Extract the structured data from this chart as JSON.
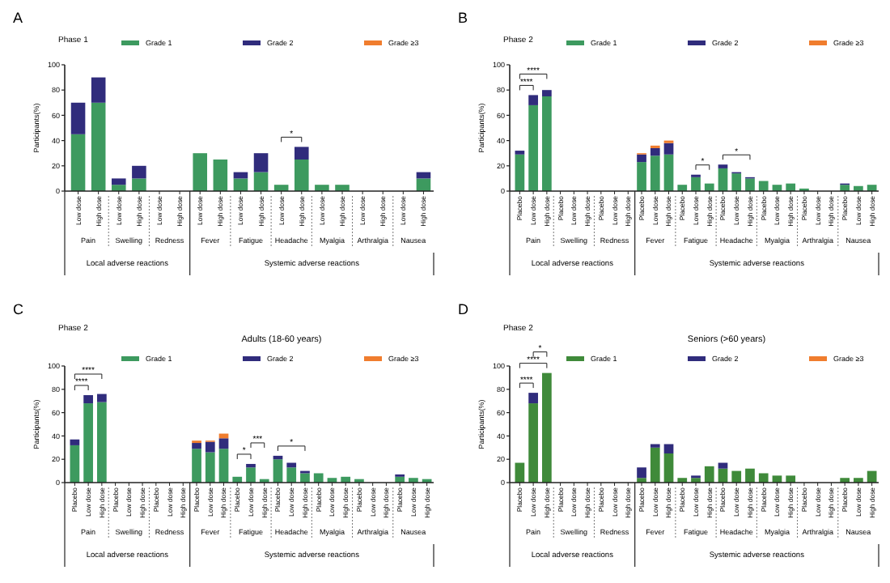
{
  "chart_data": [
    {
      "type": "bar",
      "stacked": true,
      "title": "Phase 1",
      "ylabel": "Participants(%)",
      "ylim": [
        0,
        100
      ],
      "yticks": [
        0,
        20,
        40,
        60,
        80,
        100
      ],
      "legend": "top",
      "categories": [
        "Low dose",
        "High dose",
        "Low dose",
        "High dose",
        "Low dose",
        "High dose",
        "Low dose",
        "High dose",
        "Low dose",
        "High dose",
        "Low dose",
        "High dose",
        "Low dose",
        "High dose",
        "Low dose",
        "High dose",
        "Low dose",
        "High dose"
      ],
      "series": [
        {
          "name": "Grade 1",
          "color": "#3d9a5f",
          "values": [
            45,
            70,
            5,
            10,
            0,
            0,
            30,
            25,
            10,
            15,
            5,
            25,
            5,
            5,
            0,
            0,
            0,
            10
          ]
        },
        {
          "name": "Grade 2",
          "color": "#302c7c",
          "values": [
            25,
            20,
            5,
            10,
            0,
            0,
            0,
            0,
            5,
            15,
            0,
            10,
            0,
            0,
            0,
            0,
            0,
            5
          ]
        },
        {
          "name": "Grade ≥3",
          "color": "#f07d2e",
          "values": [
            0,
            0,
            0,
            0,
            0,
            0,
            0,
            0,
            0,
            0,
            0,
            0,
            0,
            0,
            0,
            0,
            0,
            0
          ]
        }
      ],
      "annotations": [
        "A",
        "Pain",
        "Swelling",
        "Redness",
        "Fever",
        "Fatigue",
        "Headache",
        "Myalgia",
        "Arthralgia",
        "Nausea",
        "Local adverse reactions",
        "Systemic adverse reactions",
        "*"
      ]
    },
    {
      "type": "bar",
      "stacked": true,
      "title": "Phase 2",
      "ylabel": "Participants(%)",
      "ylim": [
        0,
        100
      ],
      "yticks": [
        0,
        20,
        40,
        60,
        80,
        100
      ],
      "legend": "top",
      "categories": [
        "Placebo",
        "Low dose",
        "High dose",
        "Placebo",
        "Low dose",
        "High dose",
        "Placebo",
        "Low dose",
        "High dose",
        "Placebo",
        "Low dose",
        "High dose",
        "Placebo",
        "Low dose",
        "High dose",
        "Placebo",
        "Low dose",
        "High dose",
        "Placebo",
        "Low dose",
        "High dose",
        "Placebo",
        "Low dose",
        "High dose",
        "Placebo",
        "Low dose",
        "High dose"
      ],
      "series": [
        {
          "name": "Grade 1",
          "color": "#3d9a5f",
          "values": [
            29,
            68,
            75,
            0,
            0,
            0,
            0,
            0,
            0,
            23,
            28,
            29,
            5,
            11,
            6,
            18,
            14,
            10,
            8,
            5,
            6,
            2,
            0,
            0,
            5,
            4,
            5
          ]
        },
        {
          "name": "Grade 2",
          "color": "#302c7c",
          "values": [
            3,
            8,
            5,
            0,
            0,
            0,
            0,
            0,
            0,
            6,
            6,
            9,
            0,
            2,
            0,
            3,
            1,
            1,
            0,
            0,
            0,
            0,
            0,
            0,
            1,
            0,
            0
          ]
        },
        {
          "name": "Grade ≥3",
          "color": "#f07d2e",
          "values": [
            0,
            0,
            0,
            0,
            0,
            0,
            0,
            0,
            0,
            1,
            2,
            2,
            0,
            0,
            0,
            0,
            0,
            0,
            0,
            0,
            0,
            0,
            0,
            0,
            0,
            0,
            0
          ]
        }
      ],
      "annotations": [
        "B",
        "Pain",
        "Swelling",
        "Redness",
        "Fever",
        "Fatigue",
        "Headache",
        "Myalgia",
        "Arthralgia",
        "Nausea",
        "Local adverse reactions",
        "Systemic adverse reactions",
        "****",
        "****",
        "*",
        "*"
      ]
    },
    {
      "type": "bar",
      "stacked": true,
      "title": "Phase 2",
      "subtitle": "Adults (18-60 years)",
      "ylabel": "Participants(%)",
      "ylim": [
        0,
        100
      ],
      "yticks": [
        0,
        20,
        40,
        60,
        80,
        100
      ],
      "legend": "top",
      "categories": [
        "Placebo",
        "Low dose",
        "High dose",
        "Placebo",
        "Low dose",
        "High dose",
        "Placebo",
        "Low dose",
        "High dose",
        "Placebo",
        "Low dose",
        "High dose",
        "Placebo",
        "Low dose",
        "High dose",
        "Placebo",
        "Low dose",
        "High dose",
        "Placebo",
        "Low dose",
        "High dose",
        "Placebo",
        "Low dose",
        "High dose",
        "Placebo",
        "Low dose",
        "High dose"
      ],
      "series": [
        {
          "name": "Grade 1",
          "color": "#3d9a5f",
          "values": [
            32,
            68,
            69,
            0,
            0,
            0,
            0,
            0,
            0,
            29,
            26,
            29,
            5,
            13,
            3,
            20,
            13,
            8,
            8,
            4,
            5,
            3,
            0,
            0,
            5,
            4,
            3
          ]
        },
        {
          "name": "Grade 2",
          "color": "#302c7c",
          "values": [
            5,
            7,
            7,
            0,
            0,
            0,
            0,
            0,
            0,
            5,
            9,
            9,
            0,
            3,
            0,
            3,
            4,
            2,
            0,
            0,
            0,
            0,
            0,
            0,
            2,
            0,
            0
          ]
        },
        {
          "name": "Grade ≥3",
          "color": "#f07d2e",
          "values": [
            0,
            0,
            0,
            0,
            0,
            0,
            0,
            0,
            0,
            2,
            1,
            4,
            0,
            0,
            0,
            0,
            0,
            0,
            0,
            0,
            0,
            0,
            0,
            0,
            0,
            0,
            0
          ]
        }
      ],
      "annotations": [
        "C",
        "Pain",
        "Swelling",
        "Redness",
        "Fever",
        "Fatigue",
        "Headache",
        "Myalgia",
        "Arthralgia",
        "Nausea",
        "Local adverse reactions",
        "Systemic adverse reactions",
        "****",
        "****",
        "*",
        "***",
        "*"
      ]
    },
    {
      "type": "bar",
      "stacked": true,
      "title": "Phase 2",
      "subtitle": "Seniors (>60 years)",
      "ylabel": "Participants(%)",
      "ylim": [
        0,
        100
      ],
      "yticks": [
        0,
        20,
        40,
        60,
        80,
        100
      ],
      "legend": "top",
      "categories": [
        "Placebo",
        "Low dose",
        "High dose",
        "Placebo",
        "Low dose",
        "High dose",
        "Placebo",
        "Low dose",
        "High dose",
        "Placebo",
        "Low dose",
        "High dose",
        "Placebo",
        "Low dose",
        "High dose",
        "Placebo",
        "Low dose",
        "High dose",
        "Placebo",
        "Low dose",
        "High dose",
        "Placebo",
        "Low dose",
        "High dose",
        "Placebo",
        "Low dose",
        "High dose"
      ],
      "series": [
        {
          "name": "Grade 1",
          "color": "#3f8a3a",
          "values": [
            17,
            68,
            94,
            0,
            0,
            0,
            0,
            0,
            0,
            4,
            30,
            25,
            4,
            4,
            14,
            12,
            10,
            12,
            8,
            6,
            6,
            0,
            0,
            0,
            4,
            4,
            10
          ]
        },
        {
          "name": "Grade 2",
          "color": "#302c7c",
          "values": [
            0,
            9,
            0,
            0,
            0,
            0,
            0,
            0,
            0,
            9,
            3,
            8,
            0,
            2,
            0,
            5,
            0,
            0,
            0,
            0,
            0,
            0,
            0,
            0,
            0,
            0,
            0
          ]
        },
        {
          "name": "Grade ≥3",
          "color": "#f07d2e",
          "values": [
            0,
            0,
            0,
            0,
            0,
            0,
            0,
            0,
            0,
            0,
            0,
            0,
            0,
            0,
            0,
            0,
            0,
            0,
            0,
            0,
            0,
            0,
            0,
            0,
            0,
            0,
            0
          ]
        }
      ],
      "annotations": [
        "D",
        "Pain",
        "Swelling",
        "Redness",
        "Fever",
        "Fatigue",
        "Headache",
        "Myalgia",
        "Arthralgia",
        "Nausea",
        "Local adverse reactions",
        "Systemic adverse reactions",
        "****",
        "****",
        "*"
      ]
    }
  ]
}
